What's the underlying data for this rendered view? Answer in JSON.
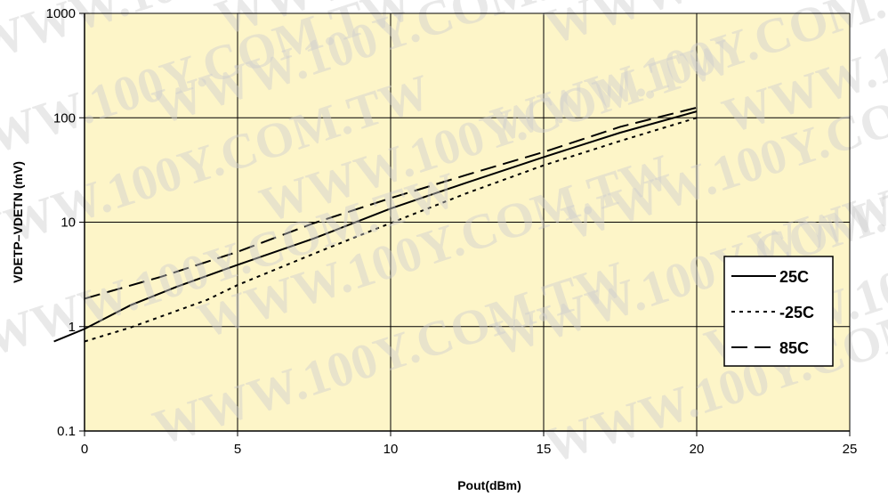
{
  "watermark_text": "WWW.100Y.COM.TW",
  "chart_data": {
    "type": "line",
    "xlabel": "Pout(dBm)",
    "ylabel": "VDETP–VDETN (mV)",
    "xlim": [
      0,
      25
    ],
    "ylim": [
      0.1,
      1000
    ],
    "yscale": "log",
    "x_ticks": [
      0,
      5,
      10,
      15,
      20,
      25
    ],
    "y_ticks": [
      0.1,
      1,
      10,
      100,
      1000
    ],
    "x_tick_labels": [
      "0",
      "5",
      "10",
      "15",
      "20",
      "25"
    ],
    "y_tick_labels": [
      "0.1",
      "1",
      "10",
      "100",
      "1000"
    ],
    "grid": true,
    "plot_background": "#fdf5c8",
    "legend_position": "right",
    "series": [
      {
        "name": "25C",
        "style": "solid",
        "color": "#000000",
        "x": [
          -1,
          0,
          1.5,
          3,
          5,
          7.5,
          10,
          12.5,
          15,
          17.5,
          20
        ],
        "y": [
          0.72,
          0.95,
          1.6,
          2.4,
          3.9,
          7.0,
          13.5,
          24,
          42,
          72,
          115
        ]
      },
      {
        "name": "-25C",
        "style": "dotted",
        "color": "#000000",
        "x": [
          0,
          1.5,
          4,
          5,
          7.5,
          10,
          12.5,
          15,
          17.5,
          20
        ],
        "y": [
          0.72,
          0.98,
          1.8,
          2.5,
          5.0,
          9.8,
          19,
          35,
          60,
          100
        ]
      },
      {
        "name": "85C",
        "style": "dashed",
        "color": "#000000",
        "x": [
          0,
          2.5,
          5,
          7.5,
          10,
          12.5,
          15,
          17.5,
          20
        ],
        "y": [
          1.85,
          3.0,
          5.2,
          9.8,
          17,
          28.5,
          47,
          82,
          125
        ]
      }
    ]
  }
}
